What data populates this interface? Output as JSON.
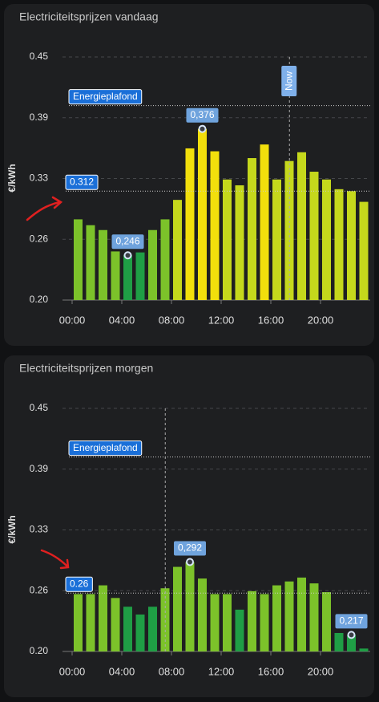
{
  "chart_data": [
    {
      "type": "bar",
      "title": "Electriciteitsprijzen vandaag",
      "y_label": "€/kWh",
      "x": [
        0,
        1,
        2,
        3,
        4,
        5,
        6,
        7,
        8,
        9,
        10,
        11,
        12,
        13,
        14,
        15,
        16,
        17,
        18,
        19,
        20,
        21,
        22,
        23
      ],
      "values": [
        0.283,
        0.277,
        0.272,
        0.25,
        0.246,
        0.249,
        0.272,
        0.283,
        0.303,
        0.356,
        0.376,
        0.353,
        0.324,
        0.318,
        0.346,
        0.36,
        0.324,
        0.343,
        0.352,
        0.332,
        0.324,
        0.314,
        0.312,
        0.301
      ],
      "value_labels": [
        null,
        null,
        null,
        null,
        "0,246",
        null,
        null,
        null,
        null,
        null,
        "0,376",
        null,
        null,
        null,
        null,
        null,
        null,
        null,
        null,
        null,
        null,
        null,
        null,
        null
      ],
      "colors": [
        "#7cc22a",
        "#7cc22a",
        "#7cc22a",
        "#7cc22a",
        "#1f9e45",
        "#1f9e45",
        "#7cc22a",
        "#7cc22a",
        "#c5d81c",
        "#f2df0c",
        "#f2df0c",
        "#f2df0c",
        "#c5d81c",
        "#c5d81c",
        "#c5d81c",
        "#f2df0c",
        "#c5d81c",
        "#c5d81c",
        "#c5d81c",
        "#c5d81c",
        "#c5d81c",
        "#c5d81c",
        "#c5d81c",
        "#c5d81c"
      ],
      "xlim": [
        0,
        24
      ],
      "xticks": [
        {
          "value": 0,
          "label": "00:00"
        },
        {
          "value": 4,
          "label": "04:00"
        },
        {
          "value": 8,
          "label": "08:00"
        },
        {
          "value": 12,
          "label": "12:00"
        },
        {
          "value": 16,
          "label": "16:00"
        },
        {
          "value": 20,
          "label": "20:00"
        }
      ],
      "ylim": [
        0.2,
        0.45
      ],
      "yticks": [
        {
          "value": 0.2,
          "label": "0.20"
        },
        {
          "value": 0.2625,
          "label": "0.26"
        },
        {
          "value": 0.325,
          "label": "0.33"
        },
        {
          "value": 0.3875,
          "label": "0.39"
        },
        0.45
      ],
      "grid": true,
      "ceiling": {
        "value": 0.4,
        "label": "Energieplafond"
      },
      "threshold": 0.312,
      "now": {
        "x": 17.5,
        "label": "Now"
      }
    },
    {
      "type": "bar",
      "title": "Electriciteitsprijzen morgen",
      "y_label": "€/kWh",
      "x": [
        0,
        1,
        2,
        3,
        4,
        5,
        6,
        7,
        8,
        9,
        10,
        11,
        12,
        13,
        14,
        15,
        16,
        17,
        18,
        19,
        20,
        21,
        22,
        23
      ],
      "values": [
        0.259,
        0.259,
        0.268,
        0.255,
        0.246,
        0.238,
        0.246,
        0.265,
        0.287,
        0.292,
        0.275,
        0.259,
        0.259,
        0.243,
        0.262,
        0.259,
        0.268,
        0.272,
        0.276,
        0.27,
        0.261,
        0.219,
        0.217,
        0.203
      ],
      "value_labels": [
        null,
        null,
        null,
        null,
        null,
        null,
        null,
        null,
        null,
        "0,292",
        null,
        null,
        null,
        null,
        null,
        null,
        null,
        null,
        null,
        null,
        null,
        null,
        "0,217",
        null
      ],
      "colors": [
        "#7cc22a",
        "#7cc22a",
        "#7cc22a",
        "#7cc22a",
        "#1f9e45",
        "#1f9e45",
        "#1f9e45",
        "#7cc22a",
        "#7cc22a",
        "#7cc22a",
        "#7cc22a",
        "#7cc22a",
        "#7cc22a",
        "#1f9e45",
        "#7cc22a",
        "#7cc22a",
        "#7cc22a",
        "#7cc22a",
        "#7cc22a",
        "#7cc22a",
        "#7cc22a",
        "#1f9e45",
        "#1f9e45",
        "#1f9e45"
      ],
      "xlim": [
        0,
        24
      ],
      "xticks": [
        {
          "value": 0,
          "label": "00:00"
        },
        {
          "value": 4,
          "label": "04:00"
        },
        {
          "value": 8,
          "label": "08:00"
        },
        {
          "value": 12,
          "label": "12:00"
        },
        {
          "value": 16,
          "label": "16:00"
        },
        {
          "value": 20,
          "label": "20:00"
        }
      ],
      "ylim": [
        0.2,
        0.45
      ],
      "yticks": [
        {
          "value": 0.2,
          "label": "0.20"
        },
        {
          "value": 0.2625,
          "label": "0.26"
        },
        {
          "value": 0.325,
          "label": "0.33"
        },
        {
          "value": 0.3875,
          "label": "0.39"
        },
        0.45
      ],
      "grid": true,
      "ceiling": {
        "value": 0.4,
        "label": "Energieplafond"
      },
      "threshold": 0.26,
      "now": {
        "x": 7.5
      }
    }
  ]
}
